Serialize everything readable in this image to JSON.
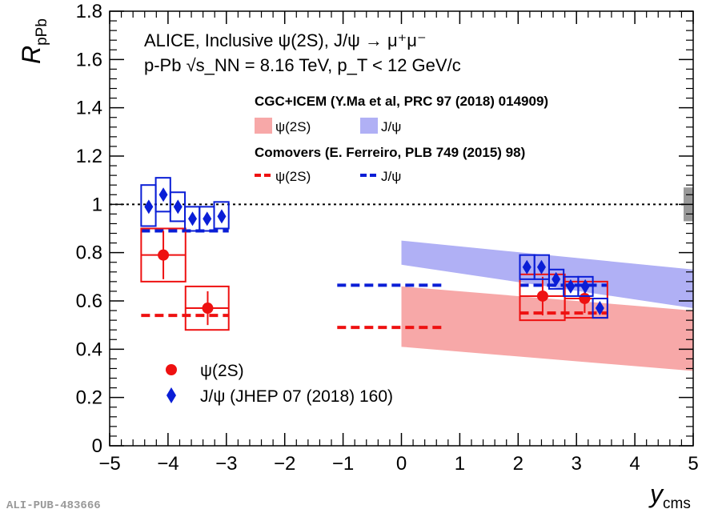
{
  "chart_data": {
    "type": "scatter",
    "title": "",
    "xlabel": {
      "main": "y",
      "sub": "cms"
    },
    "ylabel": {
      "main": "R",
      "sub": "pPb"
    },
    "xlim": [
      -5,
      5
    ],
    "ylim": [
      0,
      1.8
    ],
    "x_ticks": [
      {
        "value": -5,
        "label": "−5"
      },
      {
        "value": -4,
        "label": "−4"
      },
      {
        "value": -3,
        "label": "−3"
      },
      {
        "value": -2,
        "label": "−2"
      },
      {
        "value": -1,
        "label": "−1"
      },
      {
        "value": 0,
        "label": "0"
      },
      {
        "value": 1,
        "label": "1"
      },
      {
        "value": 2,
        "label": "2"
      },
      {
        "value": 3,
        "label": "3"
      },
      {
        "value": 4,
        "label": "4"
      },
      {
        "value": 5,
        "label": "5"
      }
    ],
    "y_ticks": [
      {
        "value": 0,
        "label": "0"
      },
      {
        "value": 0.2,
        "label": "0.2"
      },
      {
        "value": 0.4,
        "label": "0.4"
      },
      {
        "value": 0.6,
        "label": "0.6"
      },
      {
        "value": 0.8,
        "label": "0.8"
      },
      {
        "value": 1.0,
        "label": "1"
      },
      {
        "value": 1.2,
        "label": "1.2"
      },
      {
        "value": 1.4,
        "label": "1.4"
      },
      {
        "value": 1.6,
        "label": "1.6"
      },
      {
        "value": 1.8,
        "label": "1.8"
      }
    ],
    "grid": false,
    "reference_line": {
      "y": 1.0,
      "style": "dotted"
    },
    "global_uncertainty_box": {
      "y_low": 0.93,
      "y_high": 1.07
    },
    "annotations": {
      "header_line1": "ALICE, Inclusive ψ(2S), J/ψ → μ⁺μ⁻",
      "header_line2": "p-Pb √s_NN = 8.16 TeV, p_T < 12 GeV/c",
      "cgc_title": "CGC+ICEM (Y.Ma et al, PRC 97 (2018) 014909)",
      "cgc_psi2s": "ψ(2S)",
      "cgc_jpsi": "J/ψ",
      "comovers_title": "Comovers (E. Ferreiro, PLB 749 (2015) 98)",
      "com_psi2s": "ψ(2S)",
      "com_jpsi": "J/ψ",
      "legend_psi2s": "ψ(2S)",
      "legend_jpsi": "J/ψ (JHEP 07 (2018) 160)",
      "footer_label": "ALI-PUB-483666"
    },
    "colors": {
      "psi2s": "#ee1111",
      "jpsi": "#0a1ed6",
      "cgc_psi2s_band": "#f7a8a8",
      "cgc_jpsi_band": "#b0b0f5",
      "global_box": "#999999"
    },
    "series": [
      {
        "name": "ψ(2S)",
        "marker": "circle",
        "points": [
          {
            "x": -4.08,
            "y": 0.79,
            "x_low": -4.46,
            "x_high": -3.7,
            "stat": 0.1,
            "sys_low": 0.68,
            "sys_high": 0.9
          },
          {
            "x": -3.32,
            "y": 0.57,
            "x_low": -3.7,
            "x_high": -2.96,
            "stat": 0.07,
            "sys_low": 0.48,
            "sys_high": 0.66
          },
          {
            "x": 2.42,
            "y": 0.62,
            "x_low": 2.03,
            "x_high": 2.8,
            "stat": 0.08,
            "sys_low": 0.52,
            "sys_high": 0.71
          },
          {
            "x": 3.14,
            "y": 0.61,
            "x_low": 2.8,
            "x_high": 3.53,
            "stat": 0.06,
            "sys_low": 0.53,
            "sys_high": 0.68
          }
        ]
      },
      {
        "name": "J/ψ (JHEP 07 (2018) 160)",
        "marker": "diamond",
        "points": [
          {
            "x": -4.33,
            "y": 0.99,
            "x_low": -4.46,
            "x_high": -4.21,
            "stat": 0.01,
            "sys_low": 0.91,
            "sys_high": 1.08
          },
          {
            "x": -4.08,
            "y": 1.04,
            "x_low": -4.21,
            "x_high": -3.96,
            "stat": 0.01,
            "sys_low": 0.97,
            "sys_high": 1.11
          },
          {
            "x": -3.83,
            "y": 0.99,
            "x_low": -3.96,
            "x_high": -3.71,
            "stat": 0.01,
            "sys_low": 0.93,
            "sys_high": 1.05
          },
          {
            "x": -3.58,
            "y": 0.94,
            "x_low": -3.71,
            "x_high": -3.46,
            "stat": 0.01,
            "sys_low": 0.89,
            "sys_high": 0.99
          },
          {
            "x": -3.33,
            "y": 0.94,
            "x_low": -3.46,
            "x_high": -3.21,
            "stat": 0.01,
            "sys_low": 0.89,
            "sys_high": 0.99
          },
          {
            "x": -3.08,
            "y": 0.95,
            "x_low": -3.21,
            "x_high": -2.96,
            "stat": 0.01,
            "sys_low": 0.9,
            "sys_high": 1.01
          },
          {
            "x": 2.15,
            "y": 0.74,
            "x_low": 2.03,
            "x_high": 2.28,
            "stat": 0.01,
            "sys_low": 0.69,
            "sys_high": 0.79
          },
          {
            "x": 2.4,
            "y": 0.74,
            "x_low": 2.28,
            "x_high": 2.53,
            "stat": 0.01,
            "sys_low": 0.69,
            "sys_high": 0.79
          },
          {
            "x": 2.65,
            "y": 0.69,
            "x_low": 2.53,
            "x_high": 2.78,
            "stat": 0.01,
            "sys_low": 0.65,
            "sys_high": 0.73
          },
          {
            "x": 2.9,
            "y": 0.66,
            "x_low": 2.78,
            "x_high": 3.03,
            "stat": 0.01,
            "sys_low": 0.62,
            "sys_high": 0.7
          },
          {
            "x": 3.15,
            "y": 0.66,
            "x_low": 3.03,
            "x_high": 3.28,
            "stat": 0.01,
            "sys_low": 0.62,
            "sys_high": 0.7
          },
          {
            "x": 3.4,
            "y": 0.57,
            "x_low": 3.28,
            "x_high": 3.53,
            "stat": 0.01,
            "sys_low": 0.53,
            "sys_high": 0.61
          }
        ]
      }
    ],
    "bands": [
      {
        "name": "CGC+ICEM ψ(2S)",
        "x": [
          0,
          5
        ],
        "low": [
          0.41,
          0.31
        ],
        "high": [
          0.66,
          0.56
        ]
      },
      {
        "name": "CGC+ICEM J/ψ",
        "x": [
          0,
          5
        ],
        "low": [
          0.75,
          0.57
        ],
        "high": [
          0.85,
          0.73
        ]
      }
    ],
    "comover_lines": [
      {
        "name": "Comovers ψ(2S)",
        "segments": [
          {
            "x": [
              -4.46,
              -2.96
            ],
            "y": 0.54
          },
          {
            "x": [
              -1.1,
              0.75
            ],
            "y": 0.49
          },
          {
            "x": [
              2.03,
              3.53
            ],
            "y": 0.55
          }
        ]
      },
      {
        "name": "Comovers J/ψ",
        "segments": [
          {
            "x": [
              -4.46,
              -2.96
            ],
            "y": 0.89
          },
          {
            "x": [
              -1.1,
              0.75
            ],
            "y": 0.665
          },
          {
            "x": [
              2.03,
              3.53
            ],
            "y": 0.665
          }
        ]
      }
    ]
  }
}
